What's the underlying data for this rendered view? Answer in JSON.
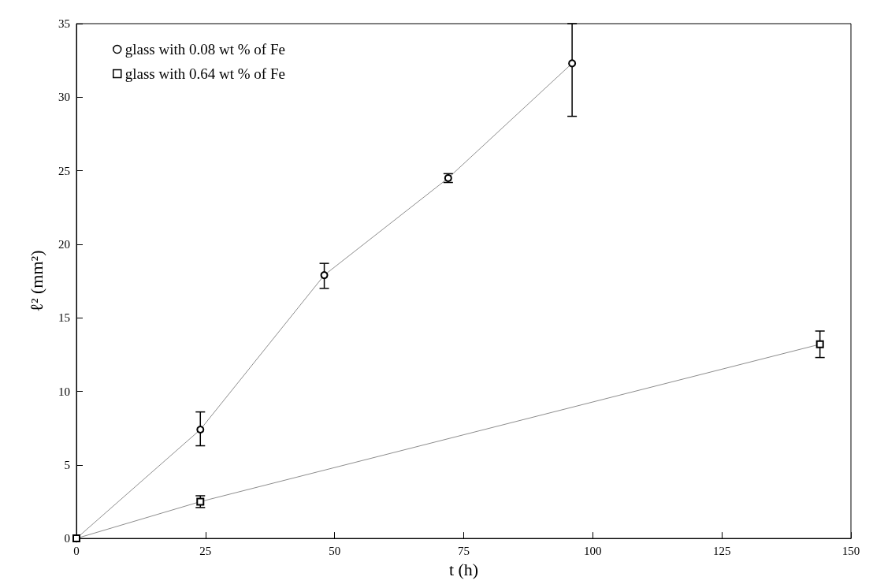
{
  "chart_data": {
    "type": "line",
    "xlabel": "t (h)",
    "ylabel": "ℓ² (mm²)",
    "xlim": [
      0,
      150
    ],
    "xticks": [
      0,
      25,
      50,
      75,
      100,
      125,
      150
    ],
    "ylim": [
      0,
      35
    ],
    "yticks": [
      0,
      5,
      10,
      15,
      20,
      25,
      30,
      35
    ],
    "grid": false,
    "legend": "top left",
    "line_style": "solid",
    "series": [
      {
        "name": "glass with 0.08 wt % of Fe",
        "color": "#000000",
        "marker": "circle",
        "x": [
          0,
          24,
          48,
          72,
          96
        ],
        "values": [
          0,
          7.4,
          17.9,
          24.5,
          32.3
        ],
        "errors": [
          null,
          [
            6.3,
            8.6
          ],
          [
            17.0,
            18.7
          ],
          [
            24.2,
            24.8
          ],
          [
            28.7,
            35
          ]
        ]
      },
      {
        "name": "glass with 0.64 wt % of Fe",
        "color": "#000000",
        "marker": "square",
        "x": [
          0,
          24,
          144
        ],
        "values": [
          0,
          2.5,
          13.2
        ],
        "errors": [
          null,
          [
            2.1,
            2.9
          ],
          [
            12.3,
            14.1
          ]
        ]
      }
    ]
  }
}
